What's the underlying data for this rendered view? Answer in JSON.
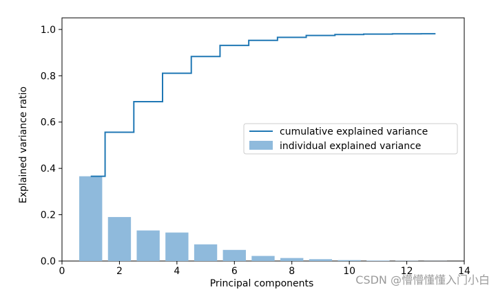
{
  "chart_data": {
    "type": "bar",
    "xlabel": "Principal components",
    "ylabel": "Explained variance ratio",
    "xlim": [
      0,
      14
    ],
    "ylim": [
      0,
      1.05
    ],
    "xticks": [
      0,
      2,
      4,
      6,
      8,
      10,
      12,
      14
    ],
    "yticks": [
      0.0,
      0.2,
      0.4,
      0.6,
      0.8,
      1.0
    ],
    "ytick_labels": [
      "0.0",
      "0.2",
      "0.4",
      "0.6",
      "0.8",
      "1.0"
    ],
    "x": [
      1,
      2,
      3,
      4,
      5,
      6,
      7,
      8,
      9,
      10,
      11,
      12,
      13
    ],
    "series": [
      {
        "name": "individual explained variance",
        "kind": "bar",
        "color": "#8fbadc",
        "values": [
          0.366,
          0.19,
          0.132,
          0.123,
          0.072,
          0.048,
          0.022,
          0.013,
          0.008,
          0.004,
          0.002,
          0.001,
          0.0005
        ]
      },
      {
        "name": "cumulative explained variance",
        "kind": "step",
        "color": "#1f77b4",
        "values": [
          0.366,
          0.556,
          0.688,
          0.811,
          0.883,
          0.931,
          0.953,
          0.966,
          0.974,
          0.978,
          0.98,
          0.981,
          0.9815
        ]
      }
    ],
    "legend": {
      "placement": "center-right",
      "entries": [
        "cumulative explained variance",
        "individual explained variance"
      ]
    },
    "grid": false
  },
  "watermark": "CSDN @懵懵懂懂入门小白"
}
